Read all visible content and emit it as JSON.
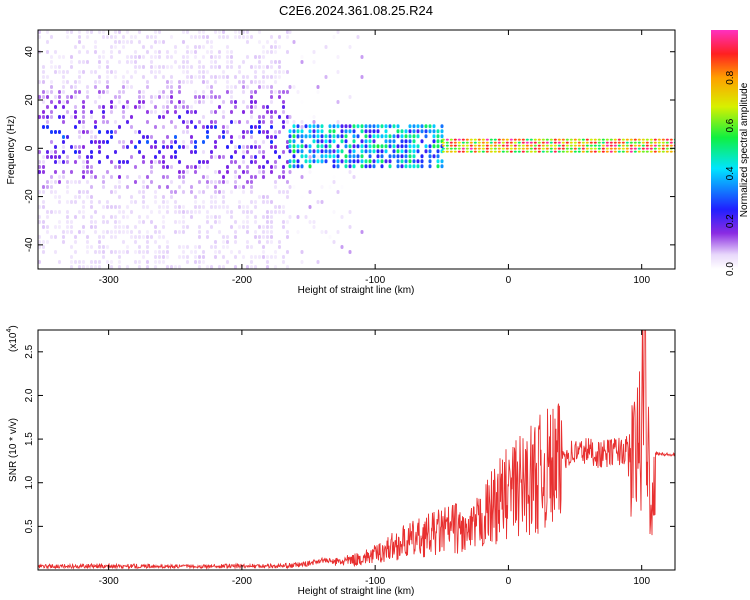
{
  "title": "C2E6.2024.361.08.25.R24",
  "chart_data": [
    {
      "type": "heatmap",
      "xlabel": "Height of straight line (km)",
      "ylabel": "Frequency (Hz)",
      "xlim": [
        -353,
        125
      ],
      "ylim": [
        -50,
        49
      ],
      "x_ticks": [
        -300,
        -200,
        -100,
        0,
        100
      ],
      "y_ticks": [
        -40,
        -20,
        0,
        20,
        40
      ],
      "colorbar": {
        "label": "Normalized spectral amplitude",
        "ticks": [
          0.0,
          0.2,
          0.4,
          0.6,
          0.8
        ],
        "tick_labels": [
          "0.0",
          "0.2",
          "0.4",
          "0.6",
          "0.8"
        ],
        "range": [
          0,
          1
        ]
      },
      "regions": [
        {
          "x": [
            -353,
            -165
          ],
          "y": [
            -50,
            49
          ],
          "value": [
            0.02,
            0.25
          ]
        },
        {
          "x": [
            -165,
            -110
          ],
          "y": [
            -50,
            49
          ],
          "value": [
            0.0,
            0.1
          ]
        },
        {
          "x": [
            -165,
            -50
          ],
          "y": [
            -8,
            10
          ],
          "value": [
            0.2,
            0.55
          ]
        },
        {
          "x": [
            -50,
            125
          ],
          "y": [
            -2,
            4
          ],
          "value": [
            0.5,
            1.0
          ]
        }
      ]
    },
    {
      "type": "line",
      "xlabel": "Height of straight line (km)",
      "ylabel": "SNR (10 * v/v)",
      "y_multiplier": "(x10",
      "y_multiplier_exp": "4",
      "y_multiplier_close": ")",
      "xlim": [
        -353,
        125
      ],
      "ylim": [
        0,
        2.75
      ],
      "x_ticks": [
        -300,
        -200,
        -100,
        0,
        100
      ],
      "y_ticks": [
        0.5,
        1.0,
        1.5,
        2.0,
        2.5
      ],
      "y_tick_labels": [
        "0.5",
        "1.0",
        "1.5",
        "2.0",
        "2.5"
      ],
      "color": "#e83030",
      "series": [
        {
          "x": [
            -353,
            -300,
            -250,
            -200,
            -170,
            -160,
            -150,
            -140,
            -130,
            -120,
            -110,
            -100,
            -90,
            -80,
            -70,
            -60,
            -50,
            -40,
            -30,
            -20,
            -10,
            0,
            10,
            20,
            30,
            40,
            50,
            60,
            70,
            80,
            90,
            95,
            100,
            102,
            105,
            108,
            110,
            115,
            125
          ],
          "y": [
            0.04,
            0.05,
            0.04,
            0.05,
            0.05,
            0.06,
            0.08,
            0.12,
            0.1,
            0.12,
            0.15,
            0.2,
            0.28,
            0.35,
            0.4,
            0.45,
            0.5,
            0.55,
            0.45,
            0.65,
            0.85,
            1.0,
            1.1,
            1.2,
            1.3,
            1.35,
            1.38,
            1.4,
            1.35,
            1.4,
            1.4,
            1.45,
            1.8,
            2.6,
            1.5,
            0.8,
            1.35,
            1.33,
            1.32
          ]
        }
      ]
    }
  ]
}
